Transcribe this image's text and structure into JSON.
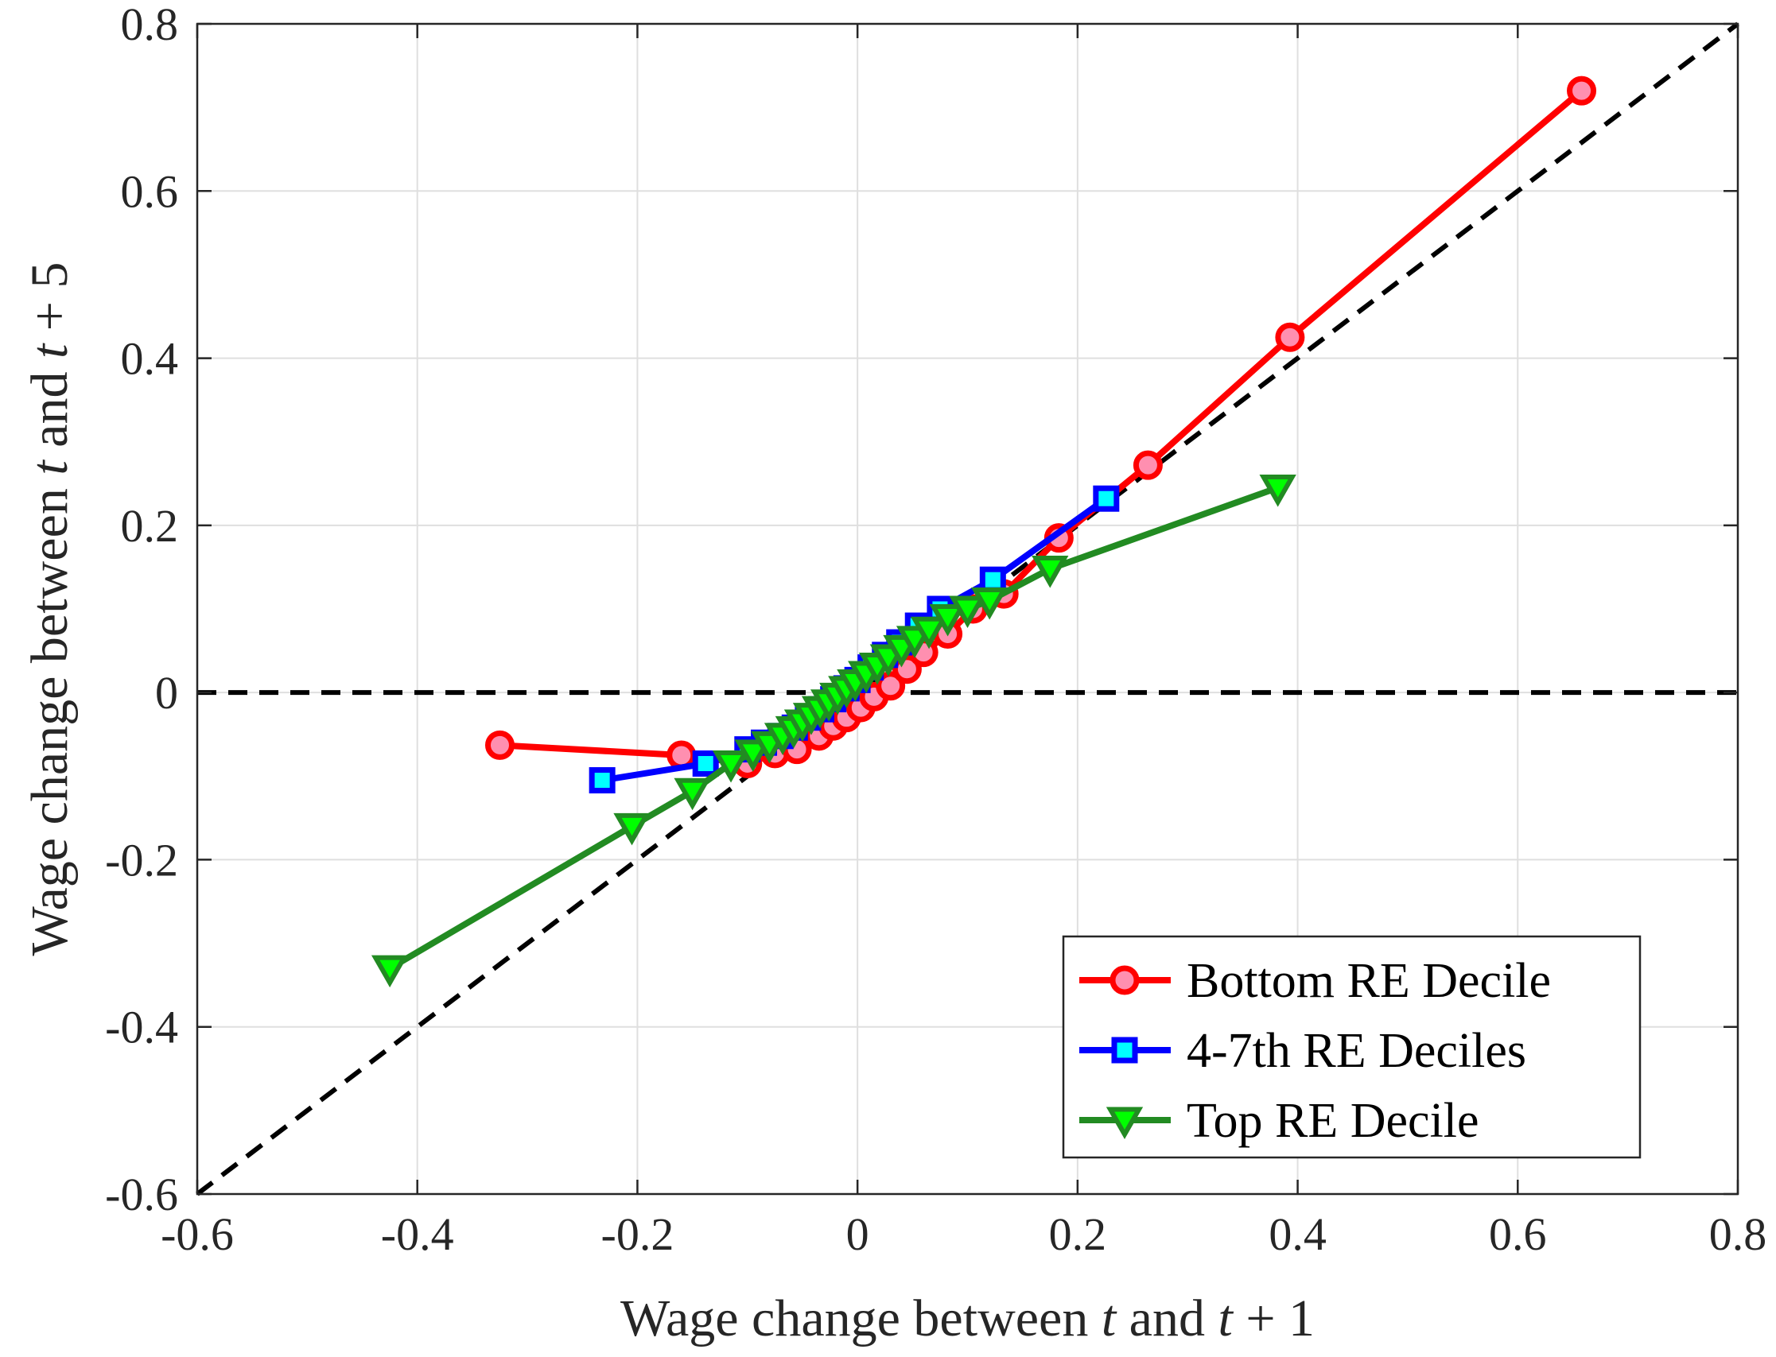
{
  "chart_data": {
    "type": "line",
    "title": "",
    "xlabel": {
      "pre": "Wage change between ",
      "var": "t",
      "mid": " and ",
      "var2": "t",
      "post": " + 1"
    },
    "ylabel": {
      "pre": "Wage change between ",
      "var": "t",
      "mid": " and ",
      "var2": "t",
      "post": " + 5"
    },
    "xlim": [
      -0.6,
      0.8
    ],
    "ylim": [
      -0.6,
      0.8
    ],
    "xticks": [
      -0.6,
      -0.4,
      -0.2,
      0,
      0.2,
      0.4,
      0.6,
      0.8
    ],
    "yticks": [
      -0.6,
      -0.4,
      -0.2,
      0,
      0.2,
      0.4,
      0.6,
      0.8
    ],
    "xtick_labels": [
      "-0.6",
      "-0.4",
      "-0.2",
      "0",
      "0.2",
      "0.4",
      "0.6",
      "0.8"
    ],
    "ytick_labels": [
      "-0.6",
      "-0.4",
      "-0.2",
      "0",
      "0.2",
      "0.4",
      "0.6",
      "0.8"
    ],
    "grid": true,
    "legend_position": "bottom-right",
    "reference_lines": [
      {
        "name": "45-degree line",
        "x": [
          -0.6,
          0.8
        ],
        "y": [
          -0.6,
          0.8
        ],
        "color": "#000000",
        "style": "dashed"
      },
      {
        "name": "zero line",
        "x": [
          -0.6,
          0.8
        ],
        "y": [
          0,
          0
        ],
        "color": "#000000",
        "style": "dashed"
      }
    ],
    "series": [
      {
        "name": "Bottom RE Decile",
        "color": "#ff0000",
        "marker": "circle",
        "marker_fill": "#ff8fb0",
        "x": [
          -0.325,
          -0.16,
          -0.1,
          -0.075,
          -0.055,
          -0.035,
          -0.022,
          -0.01,
          0.003,
          0.015,
          0.03,
          0.045,
          0.06,
          0.082,
          0.105,
          0.133,
          0.183,
          0.264,
          0.393,
          0.658
        ],
        "y": [
          -0.063,
          -0.075,
          -0.085,
          -0.073,
          -0.068,
          -0.052,
          -0.04,
          -0.03,
          -0.018,
          -0.005,
          0.008,
          0.028,
          0.048,
          0.07,
          0.1,
          0.118,
          0.185,
          0.272,
          0.425,
          0.72
        ]
      },
      {
        "name": "4-7th RE Deciles",
        "color": "#0000ff",
        "marker": "square",
        "marker_fill": "#00ffff",
        "x": [
          -0.232,
          -0.138,
          -0.1,
          -0.085,
          -0.07,
          -0.057,
          -0.045,
          -0.033,
          -0.022,
          -0.01,
          0.0,
          0.012,
          0.025,
          0.038,
          0.055,
          0.075,
          0.123,
          0.226
        ],
        "y": [
          -0.105,
          -0.085,
          -0.068,
          -0.06,
          -0.052,
          -0.042,
          -0.03,
          -0.02,
          -0.008,
          0.005,
          0.015,
          0.03,
          0.045,
          0.06,
          0.08,
          0.1,
          0.135,
          0.232
        ]
      },
      {
        "name": "Top RE Decile",
        "color": "#228b22",
        "marker": "triangle-down",
        "marker_fill": "#00ff00",
        "x": [
          -0.425,
          -0.205,
          -0.15,
          -0.115,
          -0.095,
          -0.08,
          -0.068,
          -0.058,
          -0.05,
          -0.042,
          -0.034,
          -0.026,
          -0.018,
          -0.01,
          -0.002,
          0.008,
          0.018,
          0.028,
          0.04,
          0.052,
          0.065,
          0.082,
          0.1,
          0.12,
          0.175,
          0.382
        ],
        "y": [
          -0.33,
          -0.16,
          -0.118,
          -0.085,
          -0.072,
          -0.062,
          -0.052,
          -0.044,
          -0.036,
          -0.028,
          -0.02,
          -0.012,
          -0.004,
          0.004,
          0.012,
          0.022,
          0.032,
          0.042,
          0.053,
          0.064,
          0.075,
          0.09,
          0.1,
          0.11,
          0.148,
          0.245
        ]
      }
    ]
  }
}
